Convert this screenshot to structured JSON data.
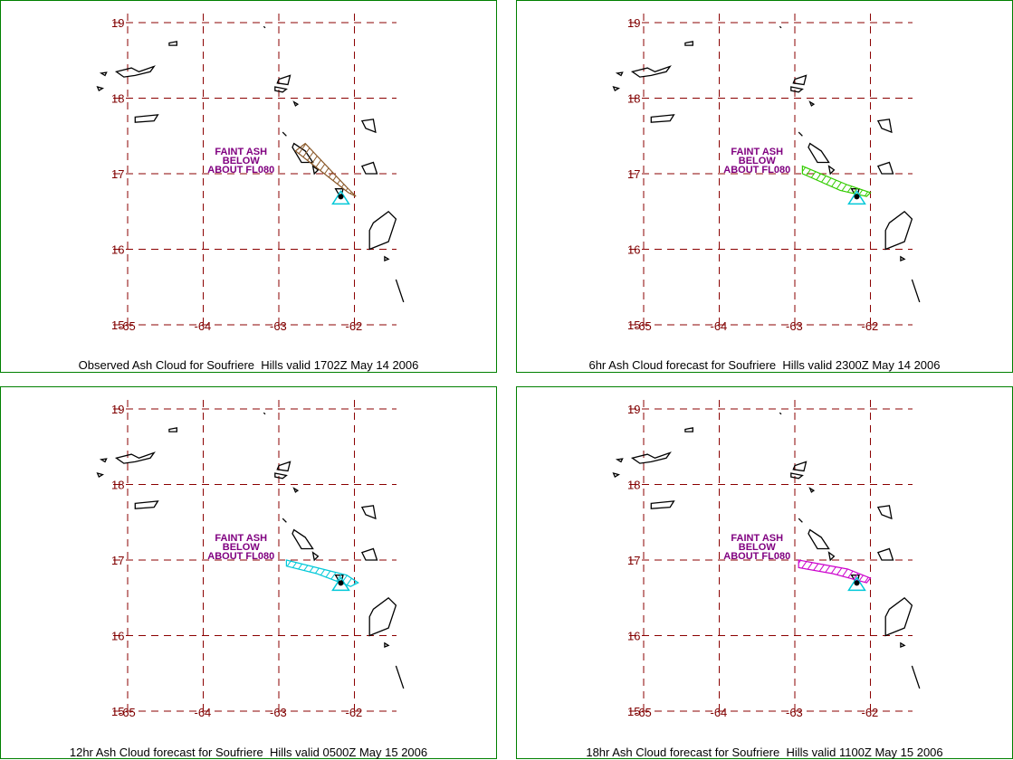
{
  "colors": {
    "grid": "#8b0000",
    "tick": "#7f0000",
    "coast": "#000000",
    "note": "#800080",
    "border": "#008000",
    "volcano": "#00c8d8"
  },
  "panels": [
    {
      "caption": "Observed Ash Cloud for Soufriere  Hills valid 1702Z May 14 2006",
      "cloud_color": "#8b5a2b",
      "cloud_polygon": [
        [
          -62.65,
          17.4
        ],
        [
          -62.1,
          16.82
        ],
        [
          -61.98,
          16.7
        ],
        [
          -62.08,
          16.75
        ],
        [
          -62.78,
          17.3
        ]
      ],
      "note_lines": [
        "FAINT ASH",
        "BELOW",
        "ABOUT FL080"
      ]
    },
    {
      "caption": "6hr Ash Cloud forecast for Soufriere  Hills valid 2300Z May 14 2006",
      "cloud_color": "#33cc00",
      "cloud_polygon": [
        [
          -62.9,
          17.1
        ],
        [
          -62.3,
          16.85
        ],
        [
          -62.0,
          16.75
        ],
        [
          -62.05,
          16.7
        ],
        [
          -62.4,
          16.78
        ],
        [
          -62.9,
          17.0
        ]
      ],
      "note_lines": [
        "FAINT ASH",
        "BELOW",
        "ABOUT FL080"
      ]
    },
    {
      "caption": "12hr Ash Cloud forecast for Soufriere  Hills valid 0500Z May 15 2006",
      "cloud_color": "#00c8d8",
      "cloud_polygon": [
        [
          -62.9,
          17.0
        ],
        [
          -62.1,
          16.8
        ],
        [
          -61.95,
          16.7
        ],
        [
          -62.05,
          16.65
        ],
        [
          -62.5,
          16.82
        ],
        [
          -62.9,
          16.92
        ]
      ],
      "note_lines": [
        "FAINT ASH",
        "BELOW",
        "ABOUT FL080"
      ]
    },
    {
      "caption": "18hr Ash Cloud forecast for Soufriere  Hills valid 1100Z May 15 2006",
      "cloud_color": "#cc00cc",
      "cloud_polygon": [
        [
          -62.95,
          17.0
        ],
        [
          -62.3,
          16.88
        ],
        [
          -62.0,
          16.76
        ],
        [
          -62.05,
          16.7
        ],
        [
          -62.5,
          16.82
        ],
        [
          -62.95,
          16.9
        ]
      ],
      "note_lines": [
        "FAINT ASH",
        "BELOW",
        "ABOUT FL080"
      ]
    }
  ],
  "lat_ticks": [
    "19",
    "18",
    "17",
    "16",
    "15"
  ],
  "lon_ticks": [
    "-65",
    "-64",
    "-63",
    "-62"
  ],
  "volcano": {
    "lon": -62.18,
    "lat": 16.72
  },
  "islands": [
    [
      [
        -65.15,
        18.35
      ],
      [
        -64.95,
        18.4
      ],
      [
        -64.85,
        18.35
      ],
      [
        -64.65,
        18.42
      ],
      [
        -64.7,
        18.35
      ],
      [
        -64.9,
        18.3
      ],
      [
        -65.05,
        18.28
      ]
    ],
    [
      [
        -64.45,
        18.73
      ],
      [
        -64.35,
        18.75
      ],
      [
        -64.35,
        18.7
      ],
      [
        -64.45,
        18.7
      ]
    ],
    [
      [
        -65.35,
        18.33
      ],
      [
        -65.28,
        18.34
      ],
      [
        -65.3,
        18.3
      ]
    ],
    [
      [
        -65.4,
        18.15
      ],
      [
        -65.33,
        18.13
      ],
      [
        -65.38,
        18.1
      ]
    ],
    [
      [
        -64.9,
        17.75
      ],
      [
        -64.6,
        17.78
      ],
      [
        -64.65,
        17.7
      ],
      [
        -64.9,
        17.68
      ]
    ],
    [
      [
        -63.05,
        18.1
      ],
      [
        -62.95,
        18.08
      ],
      [
        -62.9,
        18.12
      ],
      [
        -63.05,
        18.15
      ]
    ],
    [
      [
        -63.0,
        18.25
      ],
      [
        -62.85,
        18.3
      ],
      [
        -62.88,
        18.18
      ],
      [
        -63.02,
        18.2
      ]
    ],
    [
      [
        -62.8,
        17.95
      ],
      [
        -62.75,
        17.92
      ],
      [
        -62.78,
        17.9
      ]
    ],
    [
      [
        -62.8,
        17.4
      ],
      [
        -62.65,
        17.3
      ],
      [
        -62.55,
        17.15
      ],
      [
        -62.7,
        17.15
      ],
      [
        -62.82,
        17.35
      ]
    ],
    [
      [
        -62.55,
        17.1
      ],
      [
        -62.48,
        17.05
      ],
      [
        -62.53,
        17.0
      ]
    ],
    [
      [
        -62.25,
        16.8
      ],
      [
        -62.15,
        16.8
      ],
      [
        -62.18,
        16.68
      ]
    ],
    [
      [
        -61.9,
        17.7
      ],
      [
        -61.75,
        17.72
      ],
      [
        -61.72,
        17.55
      ],
      [
        -61.85,
        17.6
      ]
    ],
    [
      [
        -61.9,
        17.1
      ],
      [
        -61.75,
        17.15
      ],
      [
        -61.7,
        17.0
      ],
      [
        -61.85,
        17.0
      ]
    ],
    [
      [
        -61.75,
        16.35
      ],
      [
        -61.55,
        16.5
      ],
      [
        -61.45,
        16.4
      ],
      [
        -61.55,
        16.1
      ],
      [
        -61.8,
        16.0
      ],
      [
        -61.8,
        16.25
      ]
    ],
    [
      [
        -61.6,
        15.9
      ],
      [
        -61.55,
        15.87
      ],
      [
        -61.6,
        15.85
      ]
    ],
    [
      [
        -61.45,
        15.6
      ],
      [
        -61.4,
        15.45
      ],
      [
        -61.35,
        15.3
      ]
    ],
    [
      [
        -63.2,
        18.95
      ],
      [
        -63.18,
        18.93
      ]
    ],
    [
      [
        -62.95,
        17.55
      ],
      [
        -62.9,
        17.5
      ]
    ]
  ]
}
